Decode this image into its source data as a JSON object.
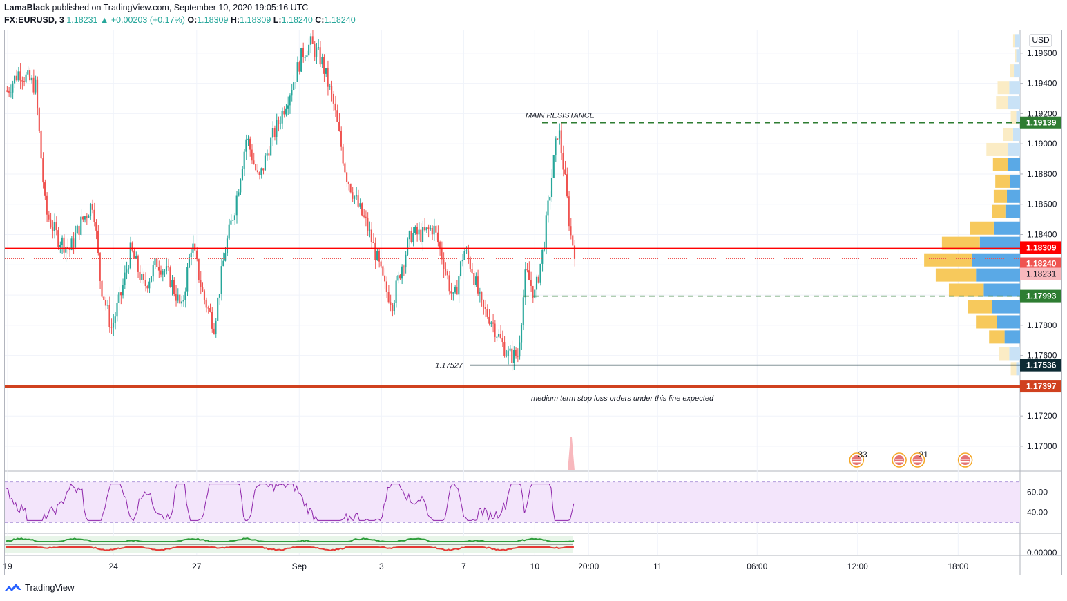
{
  "header": {
    "author": "LamaBlack",
    "published_text": "published on TradingView.com, September 10, 2020 19:05:16 UTC",
    "symbol": "FX:EURUSD, 3",
    "last": "1.18231",
    "change": "▲ +0.00203 (+0.17%)",
    "o_label": "O:",
    "o_value": "1.18309",
    "h_label": "H:",
    "h_value": "1.18309",
    "l_label": "L:",
    "l_value": "1.18240",
    "c_label": "C:",
    "c_value": "1.18240"
  },
  "footer": {
    "brand": "TradingView"
  },
  "colors": {
    "up": "#26a69a",
    "down": "#ef5350",
    "resistance": "#ff0000",
    "green_tag": "#2e7d32",
    "dark_tag": "#0d2b34",
    "stop_line": "#d0411f",
    "vp_blue": "#5aa9e6",
    "vp_yellow": "#f7c95c",
    "vp_blue_light": "#c9e2f6",
    "vp_yellow_light": "#fbecc5",
    "rsi": "#8e24aa",
    "rsi_bg": "#f3e5fb"
  },
  "chart_data": {
    "type": "candlestick",
    "currency": "USD",
    "y_ticks": [
      "1.19600",
      "1.19400",
      "1.19200",
      "1.19000",
      "1.18800",
      "1.18600",
      "1.18400",
      "1.18200",
      "1.18000",
      "1.17800",
      "1.17600",
      "1.17400",
      "1.17200",
      "1.17000"
    ],
    "ylim": [
      1.1684,
      1.1975
    ],
    "x_ticks": [
      {
        "label": "19",
        "slot": 0
      },
      {
        "label": "24",
        "slot": 0.107
      },
      {
        "label": "27",
        "slot": 0.189
      },
      {
        "label": "Sep",
        "slot": 0.29
      },
      {
        "label": "3",
        "slot": 0.371
      },
      {
        "label": "7",
        "slot": 0.452
      },
      {
        "label": "10",
        "slot": 0.522
      },
      {
        "label": "20:00",
        "slot": 0.575
      },
      {
        "label": "11",
        "slot": 0.643
      },
      {
        "label": "06:00",
        "slot": 0.741
      },
      {
        "label": "12:00",
        "slot": 0.84
      },
      {
        "label": "18:00",
        "slot": 0.939
      }
    ],
    "price_tags": [
      {
        "label": "1.19139",
        "value": 1.19139,
        "color": "#2e7d32"
      },
      {
        "label": "1.18309",
        "value": 1.18309,
        "color": "#ff0000"
      },
      {
        "label": "1.18240",
        "value": 1.1824,
        "color": "#ef5350"
      },
      {
        "label": "1.18231",
        "value": 1.18231,
        "color": "#f8b8bd"
      },
      {
        "label": "1.17993",
        "value": 1.17993,
        "color": "#2e7d32"
      },
      {
        "label": "1.17536",
        "value": 1.17536,
        "color": "#0d2b34"
      },
      {
        "label": "1.17397",
        "value": 1.17397,
        "color": "#d0411f"
      }
    ],
    "levels": [
      {
        "name": "main-resistance",
        "value": 1.19139,
        "style": "dashed",
        "label": "MAIN RESISTANCE"
      },
      {
        "name": "support",
        "value": 1.17993,
        "style": "dashed"
      },
      {
        "name": "low",
        "value": 1.17536,
        "style": "solid",
        "label": "1.17527"
      },
      {
        "name": "stop-line",
        "value": 1.17397,
        "style": "thick",
        "label": "medium term stop loss orders under this line expected"
      },
      {
        "name": "current",
        "value": 1.18309,
        "style": "solid-red"
      }
    ],
    "waypoints": [
      [
        0,
        1.1935
      ],
      [
        0.012,
        1.1948
      ],
      [
        0.028,
        1.1938
      ],
      [
        0.038,
        1.1855
      ],
      [
        0.05,
        1.1838
      ],
      [
        0.062,
        1.183
      ],
      [
        0.073,
        1.1848
      ],
      [
        0.085,
        1.1862
      ],
      [
        0.092,
        1.1808
      ],
      [
        0.103,
        1.1778
      ],
      [
        0.112,
        1.18
      ],
      [
        0.122,
        1.183
      ],
      [
        0.135,
        1.1805
      ],
      [
        0.148,
        1.1822
      ],
      [
        0.16,
        1.1812
      ],
      [
        0.172,
        1.179
      ],
      [
        0.182,
        1.1835
      ],
      [
        0.193,
        1.18
      ],
      [
        0.204,
        1.178
      ],
      [
        0.215,
        1.183
      ],
      [
        0.225,
        1.186
      ],
      [
        0.236,
        1.1905
      ],
      [
        0.248,
        1.1875
      ],
      [
        0.259,
        1.19
      ],
      [
        0.268,
        1.1915
      ],
      [
        0.276,
        1.193
      ],
      [
        0.284,
        1.1945
      ],
      [
        0.291,
        1.196
      ],
      [
        0.299,
        1.1966
      ],
      [
        0.31,
        1.1955
      ],
      [
        0.322,
        1.1925
      ],
      [
        0.334,
        1.188
      ],
      [
        0.345,
        1.186
      ],
      [
        0.355,
        1.1845
      ],
      [
        0.364,
        1.1825
      ],
      [
        0.372,
        1.1805
      ],
      [
        0.38,
        1.1795
      ],
      [
        0.388,
        1.1818
      ],
      [
        0.398,
        1.184
      ],
      [
        0.41,
        1.184
      ],
      [
        0.42,
        1.1845
      ],
      [
        0.43,
        1.1822
      ],
      [
        0.44,
        1.1795
      ],
      [
        0.45,
        1.183
      ],
      [
        0.458,
        1.1818
      ],
      [
        0.467,
        1.1792
      ],
      [
        0.476,
        1.1785
      ],
      [
        0.486,
        1.177
      ],
      [
        0.494,
        1.176
      ],
      [
        0.503,
        1.176
      ],
      [
        0.511,
        1.1815
      ],
      [
        0.52,
        1.18
      ],
      [
        0.528,
        1.183
      ],
      [
        0.537,
        1.188
      ],
      [
        0.543,
        1.1912
      ],
      [
        0.549,
        1.188
      ],
      [
        0.555,
        1.184
      ],
      [
        0.561,
        1.1825
      ]
    ],
    "volume_profile": [
      {
        "price": 1.1968,
        "up": 4,
        "down": 14
      },
      {
        "price": 1.1958,
        "up": 4,
        "down": 10
      },
      {
        "price": 1.1948,
        "up": 10,
        "down": 16
      },
      {
        "price": 1.1937,
        "up": 30,
        "down": 28
      },
      {
        "price": 1.1927,
        "up": 30,
        "down": 32
      },
      {
        "price": 1.1917,
        "up": 14,
        "down": 10
      },
      {
        "price": 1.1906,
        "up": 25,
        "down": 18
      },
      {
        "price": 1.1896,
        "up": 55,
        "down": 32
      },
      {
        "price": 1.1886,
        "up": 38,
        "down": 32
      },
      {
        "price": 1.1875,
        "up": 38,
        "down": 26
      },
      {
        "price": 1.1865,
        "up": 34,
        "down": 34
      },
      {
        "price": 1.1855,
        "up": 34,
        "down": 38
      },
      {
        "price": 1.1844,
        "up": 62,
        "down": 68
      },
      {
        "price": 1.1834,
        "up": 98,
        "down": 104
      },
      {
        "price": 1.1823,
        "up": 124,
        "down": 124
      },
      {
        "price": 1.1813,
        "up": 104,
        "down": 114
      },
      {
        "price": 1.1803,
        "up": 90,
        "down": 94
      },
      {
        "price": 1.1792,
        "up": 62,
        "down": 72
      },
      {
        "price": 1.1782,
        "up": 54,
        "down": 60
      },
      {
        "price": 1.1772,
        "up": 40,
        "down": 40
      },
      {
        "price": 1.1761,
        "up": 26,
        "down": 28
      },
      {
        "price": 1.1751,
        "up": 14,
        "down": 10
      }
    ],
    "events": [
      {
        "label": "33",
        "x_frac": 0.839
      },
      {
        "label": "",
        "x_frac": 0.881
      },
      {
        "label": "21",
        "x_frac": 0.899
      },
      {
        "label": "",
        "x_frac": 0.946
      }
    ],
    "rsi": {
      "ticks": [
        "60.00",
        "40.00"
      ],
      "ylim": [
        20,
        80
      ],
      "bands": [
        70,
        30
      ]
    },
    "osc": {
      "ticks": [
        "0.00000"
      ]
    }
  }
}
